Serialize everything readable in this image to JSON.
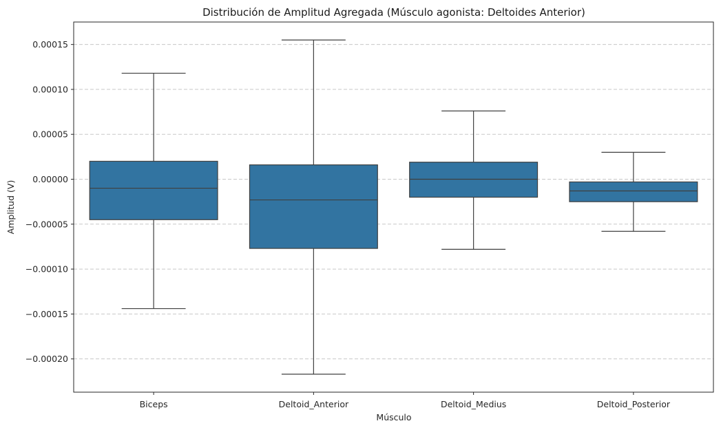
{
  "chart_data": {
    "type": "box",
    "title": "Distribución de Amplitud Agregada (Músculo agonista: Deltoides Anterior)",
    "xlabel": "Músculo",
    "ylabel": "Amplitud (V)",
    "ylim": [
      -0.000237,
      0.000175
    ],
    "yticks": [
      -0.0002,
      -0.00015,
      -0.0001,
      -5e-05,
      0.0,
      5e-05,
      0.0001,
      0.00015
    ],
    "ytick_labels": [
      "−0.00020",
      "−0.00015",
      "−0.00010",
      "−0.00005",
      "0.00000",
      "0.00005",
      "0.00010",
      "0.00015"
    ],
    "grid": "y-dashed",
    "categories": [
      "Biceps",
      "Deltoid_Anterior",
      "Deltoid_Medius",
      "Deltoid_Posterior"
    ],
    "boxes": [
      {
        "whisker_low": -0.000144,
        "q1": -4.5e-05,
        "median": -1e-05,
        "q3": 2e-05,
        "whisker_high": 0.000118
      },
      {
        "whisker_low": -0.000217,
        "q1": -7.7e-05,
        "median": -2.3e-05,
        "q3": 1.6e-05,
        "whisker_high": 0.000155
      },
      {
        "whisker_low": -7.8e-05,
        "q1": -2e-05,
        "median": 0.0,
        "q3": 1.9e-05,
        "whisker_high": 7.6e-05
      },
      {
        "whisker_low": -5.8e-05,
        "q1": -2.5e-05,
        "median": -1.3e-05,
        "q3": -3e-06,
        "whisker_high": 3e-05
      }
    ],
    "box_color": "#3274a1",
    "line_color": "#3f3f3f",
    "grid_color": "#c8c8c8"
  }
}
